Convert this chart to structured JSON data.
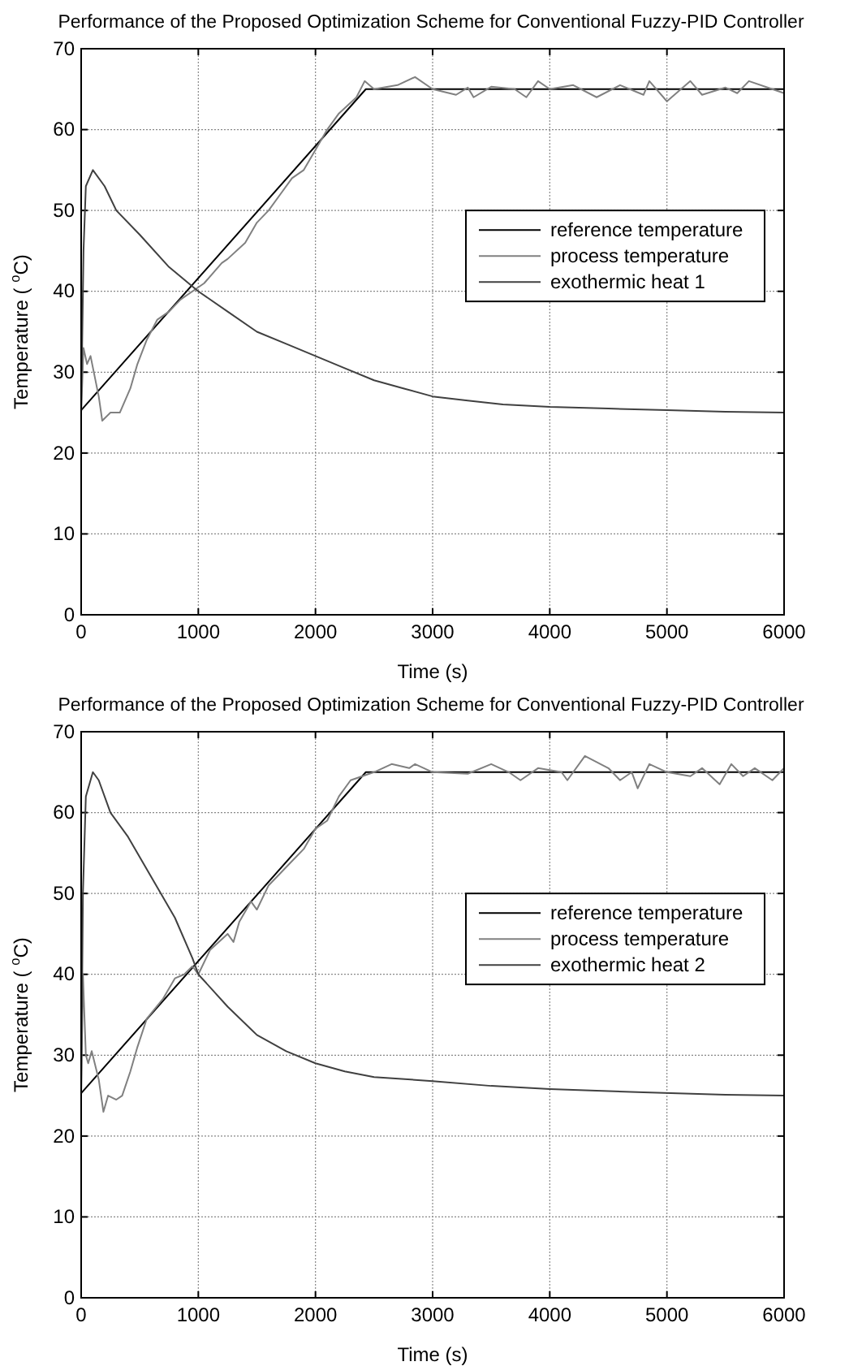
{
  "chart_data": [
    {
      "type": "line",
      "title": "Performance of the Proposed Optimization Scheme for Conventional Fuzzy-PID Controller",
      "xlabel": "Time (s)",
      "ylabel": "Temperature ( $^{o}$C)",
      "xlim": [
        0,
        6000
      ],
      "ylim": [
        0,
        70
      ],
      "xticks": [
        0,
        1000,
        2000,
        3000,
        4000,
        5000,
        6000
      ],
      "yticks": [
        0,
        10,
        20,
        30,
        40,
        50,
        60,
        70
      ],
      "grid": true,
      "legend": "right",
      "series": [
        {
          "name": "reference temperature",
          "color": "#000000",
          "x": [
            0,
            2430,
            6000
          ],
          "values": [
            25.3,
            65,
            65
          ]
        },
        {
          "name": "process temperature",
          "color": "#808080",
          "x": [
            0,
            20,
            50,
            80,
            150,
            180,
            250,
            330,
            420,
            480,
            560,
            650,
            750,
            850,
            1000,
            1050,
            1200,
            1250,
            1400,
            1500,
            1600,
            1700,
            1800,
            1900,
            2000,
            2100,
            2200,
            2350,
            2420,
            2500,
            2700,
            2850,
            3000,
            3200,
            3300,
            3350,
            3500,
            3700,
            3800,
            3900,
            4000,
            4200,
            4400,
            4600,
            4800,
            4850,
            5000,
            5200,
            5300,
            5500,
            5600,
            5700,
            5900,
            6000
          ],
          "values": [
            25,
            33,
            31,
            32,
            27,
            24,
            25,
            25,
            28,
            31,
            34,
            36.5,
            37.5,
            39,
            40.5,
            41,
            43.5,
            44,
            46,
            48.5,
            50,
            52,
            54,
            55,
            57.5,
            60,
            62,
            64,
            66,
            65,
            65.5,
            66.5,
            65,
            64.3,
            65.2,
            64,
            65.3,
            65,
            64,
            66,
            65,
            65.5,
            64,
            65.5,
            64.3,
            66,
            63.5,
            66,
            64.3,
            65.2,
            64.5,
            66,
            65,
            64.5
          ]
        },
        {
          "name": "exothermic heat 1",
          "color": "#404040",
          "x": [
            0,
            20,
            40,
            100,
            200,
            300,
            500,
            750,
            1000,
            1250,
            1500,
            1750,
            2000,
            2250,
            2500,
            2750,
            3000,
            3300,
            3600,
            4000,
            4500,
            5000,
            5500,
            6000
          ],
          "values": [
            25,
            45,
            53,
            55,
            53,
            50,
            47,
            43,
            40,
            37.5,
            35,
            33.5,
            32,
            30.5,
            29,
            28,
            27,
            26.5,
            26,
            25.7,
            25.5,
            25.3,
            25.1,
            25
          ]
        }
      ]
    },
    {
      "type": "line",
      "title": "Performance of the Proposed Optimization Scheme for Conventional Fuzzy-PID Controller",
      "xlabel": "Time (s)",
      "ylabel": "Temperature ( $^{o}$C)",
      "xlim": [
        0,
        6000
      ],
      "ylim": [
        0,
        70
      ],
      "xticks": [
        0,
        1000,
        2000,
        3000,
        4000,
        5000,
        6000
      ],
      "yticks": [
        0,
        10,
        20,
        30,
        40,
        50,
        60,
        70
      ],
      "grid": true,
      "legend": "right",
      "series": [
        {
          "name": "reference temperature",
          "color": "#000000",
          "x": [
            0,
            2430,
            6000
          ],
          "values": [
            25.3,
            65,
            65
          ]
        },
        {
          "name": "process temperature",
          "color": "#808080",
          "x": [
            0,
            15,
            40,
            60,
            90,
            150,
            190,
            230,
            300,
            350,
            420,
            480,
            560,
            700,
            800,
            880,
            950,
            1000,
            1100,
            1250,
            1300,
            1350,
            1450,
            1500,
            1600,
            1700,
            1800,
            1900,
            2000,
            2100,
            2200,
            2300,
            2400,
            2500,
            2650,
            2800,
            2850,
            3000,
            3300,
            3500,
            3650,
            3750,
            3900,
            4100,
            4150,
            4300,
            4500,
            4600,
            4700,
            4750,
            4850,
            5000,
            5200,
            5300,
            5450,
            5550,
            5650,
            5750,
            5900,
            6000
          ],
          "values": [
            25,
            40,
            30,
            29,
            30.5,
            27,
            23,
            25,
            24.5,
            25,
            28,
            31,
            34.5,
            37,
            39.5,
            40,
            41,
            40,
            43,
            45,
            44,
            46.5,
            49,
            48,
            51,
            52.5,
            54,
            55.5,
            58,
            59,
            62,
            64,
            64.5,
            65,
            66,
            65.5,
            66,
            65,
            64.8,
            66,
            65,
            64,
            65.5,
            65,
            64,
            67,
            65.5,
            64,
            65,
            63,
            66,
            65,
            64.5,
            65.5,
            63.5,
            66,
            64.5,
            65.5,
            64,
            65.5
          ]
        },
        {
          "name": "exothermic heat 2",
          "color": "#404040",
          "x": [
            0,
            15,
            40,
            100,
            150,
            250,
            400,
            600,
            800,
            950,
            1000,
            1250,
            1500,
            1750,
            2000,
            2250,
            2500,
            3000,
            3500,
            4000,
            4800,
            5500,
            6000
          ],
          "values": [
            25,
            50,
            62,
            65,
            64,
            60,
            57,
            52,
            47,
            42,
            40,
            36,
            32.5,
            30.5,
            29,
            28,
            27.3,
            26.8,
            26.2,
            25.8,
            25.4,
            25.1,
            25
          ]
        }
      ]
    }
  ]
}
